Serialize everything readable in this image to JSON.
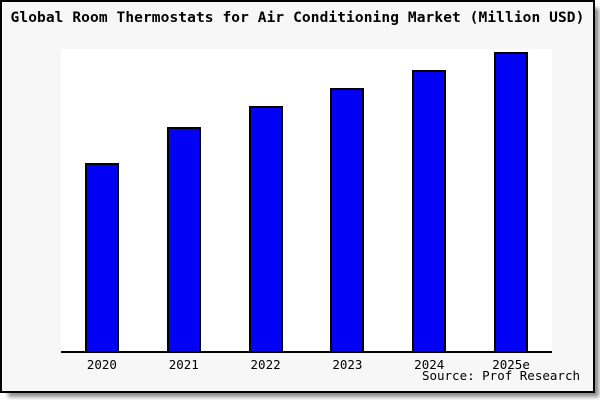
{
  "chart": {
    "title": "Global Room Thermostats for Air Conditioning Market (Million USD)",
    "source": "Source: Prof Research"
  },
  "chart_data": {
    "type": "bar",
    "title": "Global Room Thermostats for Air Conditioning Market (Million USD)",
    "categories": [
      "2020",
      "2021",
      "2022",
      "2023",
      "2024",
      "2025e"
    ],
    "values": [
      63,
      75,
      82,
      88,
      94,
      100
    ],
    "xlabel": "",
    "ylabel": "",
    "ylim": [
      0,
      101
    ],
    "y_axis_visible": false,
    "x_tick_marks": false,
    "grid": false,
    "legend": false,
    "annotation": "Source: Prof Research"
  },
  "colors": {
    "canvas_background": "#f7f7f7",
    "plot_background": "#ffffff",
    "frame_border": "#000000",
    "bar_fill": "#0000f5",
    "bar_edge": "#000000",
    "axis_line": "#000000",
    "text": "#000000"
  }
}
